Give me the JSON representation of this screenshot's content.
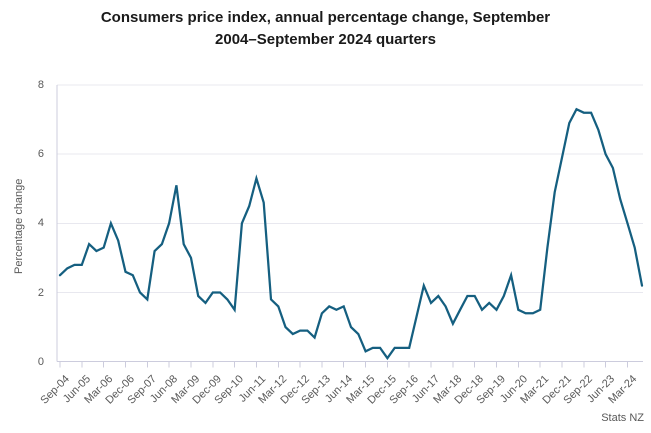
{
  "header": {
    "title_line1": "Consumers price index, annual percentage change, September",
    "title_line2": "2004–September 2024 quarters"
  },
  "y_axis": {
    "title": "Percentage change",
    "ticks": [
      0,
      2,
      4,
      6,
      8
    ],
    "min": 0,
    "max": 8
  },
  "x_axis": {
    "tick_labels": [
      "Sep-04",
      "Jun-05",
      "Mar-06",
      "Dec-06",
      "Sep-07",
      "Jun-08",
      "Mar-09",
      "Dec-09",
      "Sep-10",
      "Jun-11",
      "Mar-12",
      "Dec-12",
      "Sep-13",
      "Jun-14",
      "Mar-15",
      "Dec-15",
      "Sep-16",
      "Jun-17",
      "Mar-18",
      "Dec-18",
      "Sep-19",
      "Jun-20",
      "Mar-21",
      "Dec-21",
      "Sep-22",
      "Jun-23",
      "Mar-24"
    ]
  },
  "source": "Stats NZ",
  "colors": {
    "line": "#155f80",
    "grid": "#e8e8ef",
    "axis": "#ccccdd",
    "text_muted": "#595959",
    "title_text": "#1a1a1a"
  },
  "chart_data": {
    "type": "line",
    "title": "Consumers price index, annual percentage change, September 2004–September 2024 quarters",
    "xlabel": "",
    "ylabel": "Percentage change",
    "ylim": [
      0,
      8
    ],
    "grid": true,
    "legend_position": "none",
    "series_name": "CPI annual percentage change",
    "x": [
      "Sep-04",
      "Dec-04",
      "Mar-05",
      "Jun-05",
      "Sep-05",
      "Dec-05",
      "Mar-06",
      "Jun-06",
      "Sep-06",
      "Dec-06",
      "Mar-07",
      "Jun-07",
      "Sep-07",
      "Dec-07",
      "Mar-08",
      "Jun-08",
      "Sep-08",
      "Dec-08",
      "Mar-09",
      "Jun-09",
      "Sep-09",
      "Dec-09",
      "Mar-10",
      "Jun-10",
      "Sep-10",
      "Dec-10",
      "Mar-11",
      "Jun-11",
      "Sep-11",
      "Dec-11",
      "Mar-12",
      "Jun-12",
      "Sep-12",
      "Dec-12",
      "Mar-13",
      "Jun-13",
      "Sep-13",
      "Dec-13",
      "Mar-14",
      "Jun-14",
      "Sep-14",
      "Dec-14",
      "Mar-15",
      "Jun-15",
      "Sep-15",
      "Dec-15",
      "Mar-16",
      "Jun-16",
      "Sep-16",
      "Dec-16",
      "Mar-17",
      "Jun-17",
      "Sep-17",
      "Dec-17",
      "Mar-18",
      "Jun-18",
      "Sep-18",
      "Dec-18",
      "Mar-19",
      "Jun-19",
      "Sep-19",
      "Dec-19",
      "Mar-20",
      "Jun-20",
      "Sep-20",
      "Dec-20",
      "Mar-21",
      "Jun-21",
      "Sep-21",
      "Dec-21",
      "Mar-22",
      "Jun-22",
      "Sep-22",
      "Dec-22",
      "Mar-23",
      "Jun-23",
      "Sep-23",
      "Dec-23",
      "Mar-24",
      "Jun-24",
      "Sep-24"
    ],
    "values": [
      2.5,
      2.7,
      2.8,
      2.8,
      3.4,
      3.2,
      3.3,
      4.0,
      3.5,
      2.6,
      2.5,
      2.0,
      1.8,
      3.2,
      3.4,
      4.0,
      5.1,
      3.4,
      3.0,
      1.9,
      1.7,
      2.0,
      2.0,
      1.8,
      1.5,
      4.0,
      4.5,
      5.3,
      4.6,
      1.8,
      1.6,
      1.0,
      0.8,
      0.9,
      0.9,
      0.7,
      1.4,
      1.6,
      1.5,
      1.6,
      1.0,
      0.8,
      0.3,
      0.4,
      0.4,
      0.1,
      0.4,
      0.4,
      0.4,
      1.3,
      2.2,
      1.7,
      1.9,
      1.6,
      1.1,
      1.5,
      1.9,
      1.9,
      1.5,
      1.7,
      1.5,
      1.9,
      2.5,
      1.5,
      1.4,
      1.4,
      1.5,
      3.3,
      4.9,
      5.9,
      6.9,
      7.3,
      7.2,
      7.2,
      6.7,
      6.0,
      5.6,
      4.7,
      4.0,
      3.3,
      2.2
    ]
  }
}
